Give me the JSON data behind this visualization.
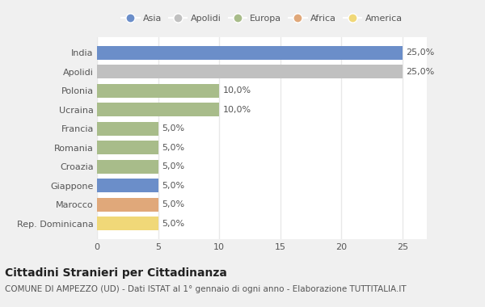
{
  "categories": [
    "India",
    "Apolidi",
    "Polonia",
    "Ucraina",
    "Francia",
    "Romania",
    "Croazia",
    "Giappone",
    "Marocco",
    "Rep. Dominicana"
  ],
  "values": [
    25.0,
    25.0,
    10.0,
    10.0,
    5.0,
    5.0,
    5.0,
    5.0,
    5.0,
    5.0
  ],
  "bar_colors": [
    "#6b8ec9",
    "#c0c0c0",
    "#a8bc8a",
    "#a8bc8a",
    "#a8bc8a",
    "#a8bc8a",
    "#a8bc8a",
    "#6b8ec9",
    "#e0a87a",
    "#f0d878"
  ],
  "legend_entries": [
    {
      "label": "Asia",
      "color": "#6b8ec9"
    },
    {
      "label": "Apolidi",
      "color": "#c0c0c0"
    },
    {
      "label": "Europa",
      "color": "#a8bc8a"
    },
    {
      "label": "Africa",
      "color": "#e0a87a"
    },
    {
      "label": "America",
      "color": "#f0d878"
    }
  ],
  "title": "Cittadini Stranieri per Cittadinanza",
  "subtitle": "COMUNE DI AMPEZZO (UD) - Dati ISTAT al 1° gennaio di ogni anno - Elaborazione TUTTITALIA.IT",
  "xlim": [
    0,
    27
  ],
  "xticks": [
    0,
    5,
    10,
    15,
    20,
    25
  ],
  "background_color": "#f0f0f0",
  "plot_bg_color": "#ffffff",
  "bar_height": 0.72,
  "value_labels": [
    "25,0%",
    "25,0%",
    "10,0%",
    "10,0%",
    "5,0%",
    "5,0%",
    "5,0%",
    "5,0%",
    "5,0%",
    "5,0%"
  ],
  "grid_color": "#e8e8e8",
  "text_color": "#555555",
  "title_fontsize": 10,
  "subtitle_fontsize": 7.5,
  "bar_label_fontsize": 8,
  "tick_fontsize": 8,
  "legend_fontsize": 8
}
